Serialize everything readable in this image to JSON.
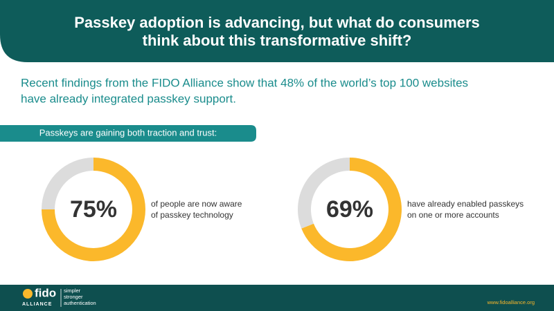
{
  "header": {
    "title_lines": [
      "Passkey adoption is advancing, but what do consumers",
      "think about this transformative shift?"
    ]
  },
  "intro": {
    "lines": [
      "Recent findings from the FIDO Alliance show that 48% of the world’s top 100 websites",
      "have already integrated passkey support."
    ]
  },
  "banner": {
    "text": "Passkeys are gaining both traction and trust:"
  },
  "chart_data": [
    {
      "type": "donut",
      "values": [
        75,
        25
      ],
      "value_labels": [
        "75%",
        null
      ],
      "colors": [
        "#fbb82b",
        "#dcdcdc"
      ],
      "caption_lines": [
        "of people are now aware",
        "of passkey technology"
      ]
    },
    {
      "type": "donut",
      "values": [
        69,
        31
      ],
      "value_labels": [
        "69%",
        null
      ],
      "colors": [
        "#fbb82b",
        "#dcdcdc"
      ],
      "caption_lines": [
        "have already enabled passkeys",
        "on one or more accounts"
      ]
    }
  ],
  "footer": {
    "logo": "fido",
    "logo_sub": "ALLIANCE",
    "tagline": [
      "simpler",
      "stronger",
      "authentication"
    ],
    "url": "www.fidoalliance.org"
  }
}
